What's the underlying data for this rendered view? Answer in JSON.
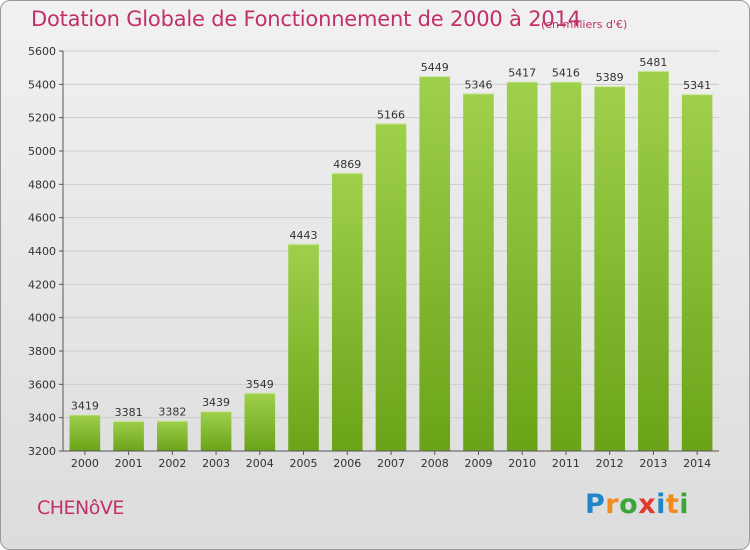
{
  "header": {
    "title": "Dotation Globale de Fonctionnement de 2000 à 2014",
    "unit": "(en milliers d'€)"
  },
  "footer": {
    "commune": "CHENôVE",
    "logo": {
      "text": "Proxiti",
      "letter_colors": [
        "#1f86c8",
        "#f08c1e",
        "#3aa63a",
        "#e23a2c",
        "#1f86c8",
        "#f08c1e",
        "#3aa63a"
      ]
    }
  },
  "chart_data": {
    "type": "bar",
    "categories": [
      "2000",
      "2001",
      "2002",
      "2003",
      "2004",
      "2005",
      "2006",
      "2007",
      "2008",
      "2009",
      "2010",
      "2011",
      "2012",
      "2013",
      "2014"
    ],
    "values": [
      3419,
      3381,
      3382,
      3439,
      3549,
      4443,
      4869,
      5166,
      5449,
      5346,
      5417,
      5416,
      5389,
      5481,
      5341
    ],
    "yticks": [
      3200,
      3400,
      3600,
      3800,
      4000,
      4200,
      4400,
      4600,
      4800,
      5000,
      5200,
      5400,
      5600
    ],
    "ylim": [
      3200,
      5600
    ],
    "grid": true,
    "colors": {
      "bar_light": "#9fd04c",
      "bar_dark": "#6aa318",
      "grid": "#cccccc"
    }
  }
}
